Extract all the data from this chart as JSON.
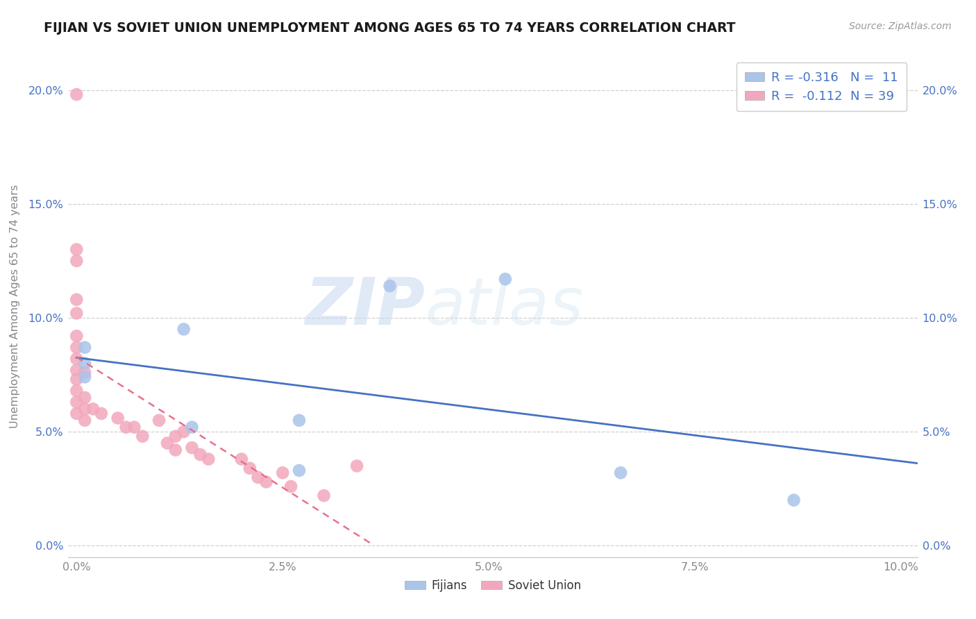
{
  "title": "FIJIAN VS SOVIET UNION UNEMPLOYMENT AMONG AGES 65 TO 74 YEARS CORRELATION CHART",
  "source": "Source: ZipAtlas.com",
  "ylabel": "Unemployment Among Ages 65 to 74 years",
  "xlim": [
    -0.001,
    0.102
  ],
  "ylim": [
    -0.005,
    0.215
  ],
  "xtick_vals": [
    0.0,
    0.025,
    0.05,
    0.075,
    0.1
  ],
  "xtick_labels": [
    "0.0%",
    "2.5%",
    "5.0%",
    "7.5%",
    "10.0%"
  ],
  "ytick_vals": [
    0.0,
    0.05,
    0.1,
    0.15,
    0.2
  ],
  "ytick_labels": [
    "0.0%",
    "5.0%",
    "10.0%",
    "15.0%",
    "20.0%"
  ],
  "fijian_color": "#aac4ea",
  "soviet_color": "#f2a8bc",
  "fijian_line_color": "#4472c4",
  "soviet_line_color": "#e8708a",
  "fijian_R": -0.316,
  "fijian_N": 11,
  "soviet_R": -0.112,
  "soviet_N": 39,
  "fijian_scatter_x": [
    0.001,
    0.001,
    0.001,
    0.013,
    0.014,
    0.027,
    0.027,
    0.038,
    0.052,
    0.066,
    0.087
  ],
  "fijian_scatter_y": [
    0.074,
    0.08,
    0.087,
    0.095,
    0.052,
    0.033,
    0.055,
    0.114,
    0.117,
    0.032,
    0.02
  ],
  "soviet_scatter_x": [
    0.0,
    0.0,
    0.0,
    0.0,
    0.0,
    0.0,
    0.0,
    0.0,
    0.0,
    0.0,
    0.0,
    0.0,
    0.0,
    0.001,
    0.001,
    0.001,
    0.001,
    0.002,
    0.003,
    0.005,
    0.006,
    0.007,
    0.008,
    0.01,
    0.011,
    0.012,
    0.012,
    0.013,
    0.014,
    0.015,
    0.016,
    0.02,
    0.021,
    0.022,
    0.023,
    0.025,
    0.026,
    0.03,
    0.034
  ],
  "soviet_scatter_y": [
    0.198,
    0.13,
    0.125,
    0.108,
    0.102,
    0.092,
    0.087,
    0.082,
    0.077,
    0.073,
    0.068,
    0.063,
    0.058,
    0.076,
    0.065,
    0.06,
    0.055,
    0.06,
    0.058,
    0.056,
    0.052,
    0.052,
    0.048,
    0.055,
    0.045,
    0.048,
    0.042,
    0.05,
    0.043,
    0.04,
    0.038,
    0.038,
    0.034,
    0.03,
    0.028,
    0.032,
    0.026,
    0.022,
    0.035
  ],
  "watermark_zip": "ZIP",
  "watermark_atlas": "atlas",
  "background_color": "#ffffff",
  "grid_color": "#d0d0d0",
  "legend_label_color": "#4472c4",
  "axis_label_color": "#888888",
  "tick_color": "#888888"
}
